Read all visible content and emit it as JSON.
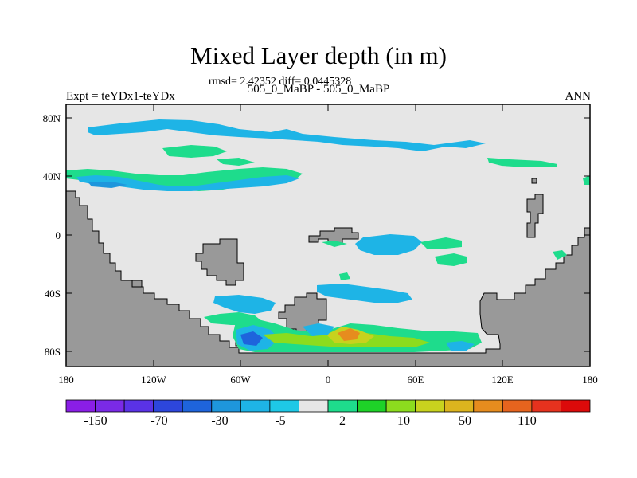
{
  "title": "Mixed Layer depth (in m)",
  "stats": "rmsd= 2.42352  diff= 0.0445328",
  "left_string": "Expt = teYDx1-teYDx",
  "center_string": "505_0_MaBP - 505_0_MaBP",
  "right_string": "ANN",
  "lat_ticks": [
    "80N",
    "40N",
    "0",
    "40S",
    "80S"
  ],
  "lon_ticks": [
    "180",
    "120W",
    "60W",
    "0",
    "60E",
    "120E",
    "180"
  ],
  "colorbar": {
    "labels": [
      "-150",
      "-70",
      "-30",
      "-5",
      "2",
      "10",
      "50",
      "110"
    ],
    "colors": [
      "#8a1ee6",
      "#7a2ae6",
      "#5a32e6",
      "#2d46dc",
      "#1e64dc",
      "#1e96dc",
      "#1eb4e6",
      "#1ec8e6",
      "#e6e6e6",
      "#1edc8c",
      "#1ed228",
      "#8cdc1e",
      "#c8d21e",
      "#dcb41e",
      "#e68c1e",
      "#e6641e",
      "#e6321e",
      "#dc0a0a"
    ]
  },
  "colors": {
    "background": "#e6e6e6",
    "land": "#999999"
  }
}
